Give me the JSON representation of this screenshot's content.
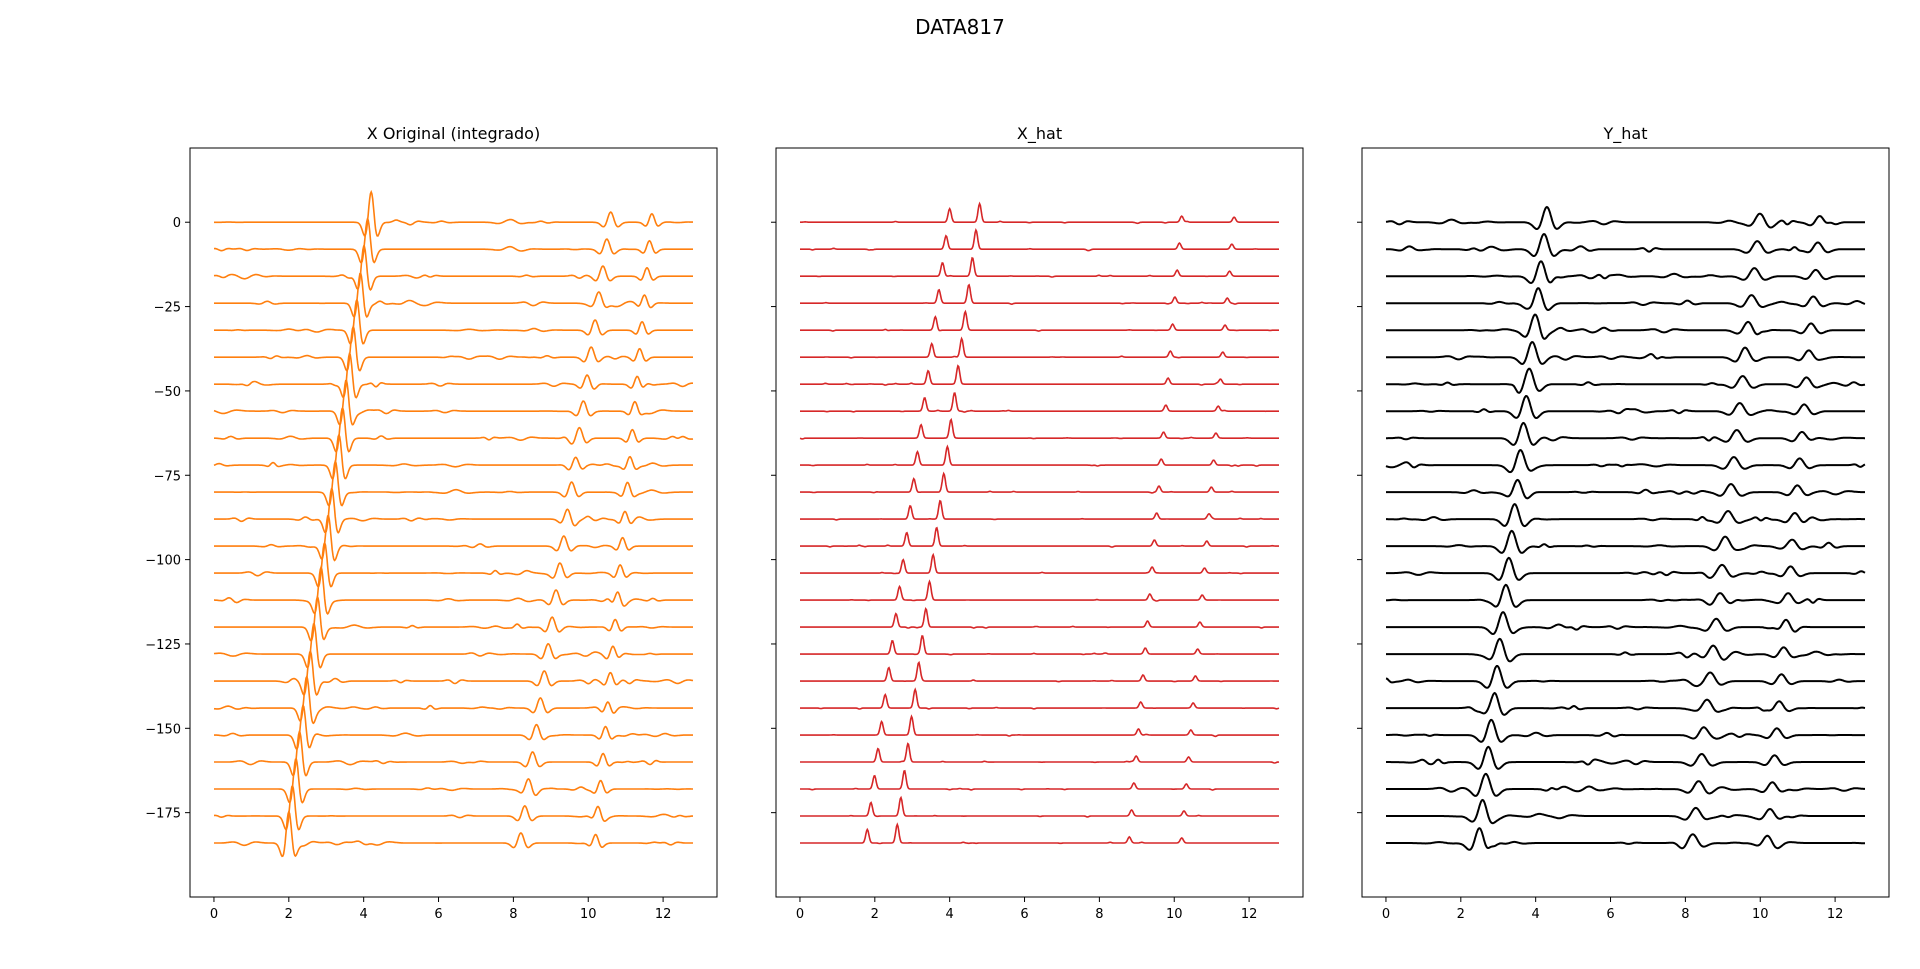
{
  "figure": {
    "title": "DATA817"
  },
  "chart_data": [
    {
      "type": "line",
      "title": "X Original (integrado)",
      "color": "#ff7f0e",
      "xlim": [
        -0.64,
        13.44
      ],
      "ylim": [
        -200,
        22
      ],
      "xticks": [
        0,
        2,
        4,
        6,
        8,
        10,
        12
      ],
      "yticks": [
        0,
        -25,
        -50,
        -75,
        -100,
        -125,
        -150,
        -175
      ],
      "show_y_tick_labels": true,
      "n_traces": 24,
      "trace_spacing": 8,
      "trace_offsets": [
        0,
        -8,
        -16,
        -24,
        -32,
        -40,
        -48,
        -56,
        -64,
        -72,
        -80,
        -88,
        -96,
        -104,
        -112,
        -120,
        -128,
        -136,
        -144,
        -152,
        -160,
        -168,
        -176,
        -184
      ],
      "x_range": [
        0,
        12.8
      ],
      "events": [
        {
          "t_top": 4.2,
          "t_bottom": 2.0,
          "amp": 9,
          "width": 0.14,
          "kind": "ricker"
        },
        {
          "t_top": 10.6,
          "t_bottom": 8.2,
          "amp": 3,
          "width": 0.16,
          "kind": "ricker"
        },
        {
          "t_top": 11.7,
          "t_bottom": 10.2,
          "amp": 2.5,
          "width": 0.14,
          "kind": "ricker"
        }
      ]
    },
    {
      "type": "line",
      "title": "X_hat",
      "color": "#d62728",
      "xlim": [
        -0.64,
        13.44
      ],
      "ylim": [
        -200,
        22
      ],
      "xticks": [
        0,
        2,
        4,
        6,
        8,
        10,
        12
      ],
      "yticks": [
        0,
        -25,
        -50,
        -75,
        -100,
        -125,
        -150,
        -175
      ],
      "show_y_tick_labels": false,
      "n_traces": 24,
      "trace_spacing": 8,
      "trace_offsets": [
        0,
        -8,
        -16,
        -24,
        -32,
        -40,
        -48,
        -56,
        -64,
        -72,
        -80,
        -88,
        -96,
        -104,
        -112,
        -120,
        -128,
        -136,
        -144,
        -152,
        -160,
        -168,
        -176,
        -184
      ],
      "x_range": [
        0,
        12.8
      ],
      "events": [
        {
          "t_top": 4.8,
          "t_bottom": 2.6,
          "amp": 5.5,
          "width": 0.06,
          "kind": "spike"
        },
        {
          "t_top": 4.0,
          "t_bottom": 1.8,
          "amp": 4,
          "width": 0.06,
          "kind": "spike"
        },
        {
          "t_top": 10.2,
          "t_bottom": 8.8,
          "amp": 1.8,
          "width": 0.06,
          "kind": "spike"
        },
        {
          "t_top": 11.6,
          "t_bottom": 10.2,
          "amp": 1.5,
          "width": 0.06,
          "kind": "spike"
        }
      ]
    },
    {
      "type": "line",
      "title": "Y_hat",
      "color": "#000000",
      "xlim": [
        -0.64,
        13.44
      ],
      "ylim": [
        -200,
        22
      ],
      "xticks": [
        0,
        2,
        4,
        6,
        8,
        10,
        12
      ],
      "yticks": [
        0,
        -25,
        -50,
        -75,
        -100,
        -125,
        -150,
        -175
      ],
      "show_y_tick_labels": false,
      "n_traces": 24,
      "trace_spacing": 8,
      "trace_offsets": [
        0,
        -8,
        -16,
        -24,
        -32,
        -40,
        -48,
        -56,
        -64,
        -72,
        -80,
        -88,
        -96,
        -104,
        -112,
        -120,
        -128,
        -136,
        -144,
        -152,
        -160,
        -168,
        -176,
        -184
      ],
      "x_range": [
        0,
        12.8
      ],
      "events": [
        {
          "t_top": 4.3,
          "t_bottom": 2.5,
          "amp": 4.5,
          "width": 0.22,
          "kind": "ricker"
        },
        {
          "t_top": 10.0,
          "t_bottom": 8.2,
          "amp": 2.4,
          "width": 0.24,
          "kind": "ricker"
        },
        {
          "t_top": 11.6,
          "t_bottom": 10.2,
          "amp": 2.0,
          "width": 0.22,
          "kind": "ricker"
        }
      ]
    }
  ]
}
